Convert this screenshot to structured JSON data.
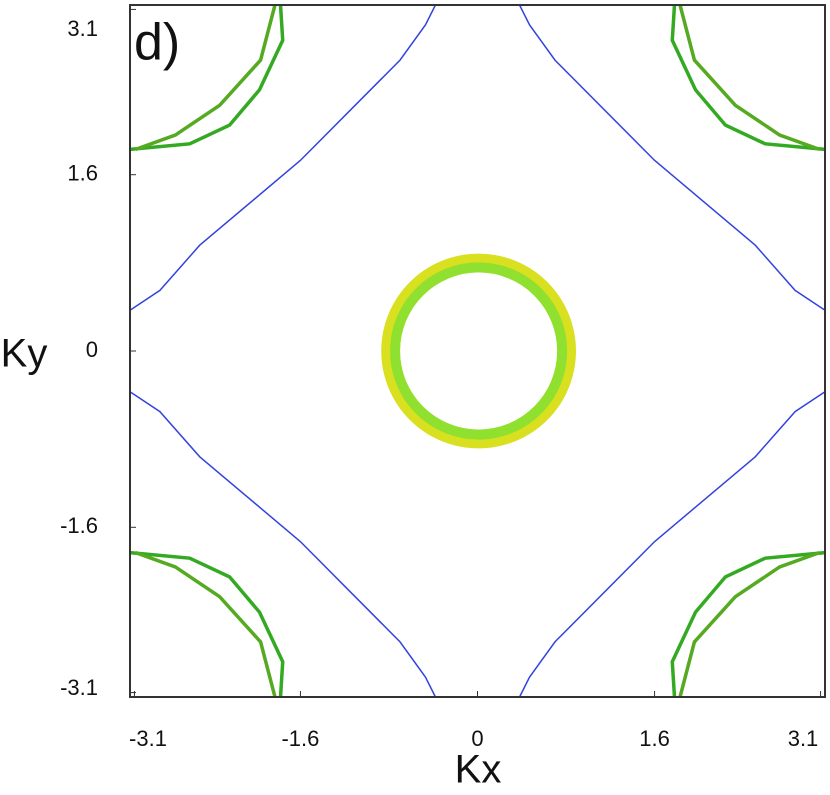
{
  "chart_data": {
    "type": "contour",
    "panel_label": "d)",
    "xlabel": "Kx",
    "ylabel": "Ky",
    "xlim": [
      -3.14,
      3.14
    ],
    "ylim": [
      -3.14,
      3.14
    ],
    "xticks": [
      -3.1,
      -1.6,
      0,
      1.6,
      3.1
    ],
    "yticks": [
      -3.1,
      -1.6,
      0,
      1.6,
      3.1
    ],
    "curves": [
      {
        "color": "#3344dd",
        "x": [
          -0.38,
          -0.47,
          -0.7,
          -1.6,
          -2.51,
          -2.87,
          -3.14
        ],
        "y": [
          3.14,
          2.96,
          2.64,
          1.73,
          0.96,
          0.55,
          0.37
        ]
      },
      {
        "color": "#3344dd",
        "x": [
          0.38,
          0.47,
          0.7,
          1.6,
          2.51,
          2.87,
          3.14
        ],
        "y": [
          3.14,
          2.96,
          2.64,
          1.73,
          0.96,
          0.55,
          0.37
        ]
      },
      {
        "color": "#3344dd",
        "x": [
          -0.38,
          -0.47,
          -0.7,
          -1.6,
          -2.51,
          -2.87,
          -3.14
        ],
        "y": [
          -3.14,
          -2.96,
          -2.64,
          -1.73,
          -0.96,
          -0.55,
          -0.37
        ]
      },
      {
        "color": "#3344dd",
        "x": [
          0.38,
          0.47,
          0.7,
          1.6,
          2.51,
          2.87,
          3.14
        ],
        "y": [
          -3.14,
          -2.96,
          -2.64,
          -1.73,
          -0.96,
          -0.55,
          -0.37
        ]
      },
      {
        "color": "#33aa22",
        "x": [
          -1.78,
          -1.76,
          -1.97,
          -2.24,
          -2.6,
          -3.14
        ],
        "y": [
          3.14,
          2.82,
          2.37,
          2.05,
          1.88,
          1.83
        ]
      },
      {
        "color": "#55aa22",
        "x": [
          -1.83,
          -1.96,
          -2.33,
          -2.73,
          -3.09
        ],
        "y": [
          3.14,
          2.64,
          2.23,
          1.96,
          1.83
        ]
      },
      {
        "color": "#33aa22",
        "x": [
          1.78,
          1.76,
          1.97,
          2.24,
          2.6,
          3.14
        ],
        "y": [
          3.14,
          2.82,
          2.37,
          2.05,
          1.88,
          1.83
        ]
      },
      {
        "color": "#55aa22",
        "x": [
          1.83,
          1.96,
          2.33,
          2.73,
          3.09
        ],
        "y": [
          3.14,
          2.64,
          2.23,
          1.96,
          1.83
        ]
      },
      {
        "color": "#33aa22",
        "x": [
          -1.78,
          -1.76,
          -1.97,
          -2.24,
          -2.6,
          -3.14
        ],
        "y": [
          -3.14,
          -2.82,
          -2.37,
          -2.05,
          -1.88,
          -1.83
        ]
      },
      {
        "color": "#55aa22",
        "x": [
          -1.83,
          -1.96,
          -2.33,
          -2.73,
          -3.09
        ],
        "y": [
          -3.14,
          -2.64,
          -2.23,
          -1.96,
          -1.83
        ]
      },
      {
        "color": "#33aa22",
        "x": [
          1.78,
          1.76,
          1.97,
          2.24,
          2.6,
          3.14
        ],
        "y": [
          -3.14,
          -2.82,
          -2.37,
          -2.05,
          -1.88,
          -1.83
        ]
      },
      {
        "color": "#55aa22",
        "x": [
          1.83,
          1.96,
          2.33,
          2.73,
          3.09
        ],
        "y": [
          -3.14,
          -2.64,
          -2.23,
          -1.96,
          -1.83
        ]
      }
    ],
    "rings": [
      {
        "x": 0.01,
        "y": 0,
        "r_outer": 0.88,
        "r_inner": 0.71,
        "color": "#d8e020",
        "edge_color": "#90e030"
      }
    ]
  }
}
